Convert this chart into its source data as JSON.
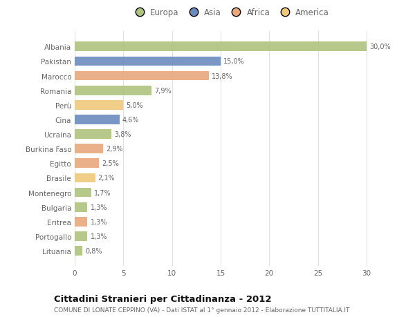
{
  "countries": [
    "Albania",
    "Pakistan",
    "Marocco",
    "Romania",
    "Perù",
    "Cina",
    "Ucraina",
    "Burkina Faso",
    "Egitto",
    "Brasile",
    "Montenegro",
    "Bulgaria",
    "Eritrea",
    "Portogallo",
    "Lituania"
  ],
  "values": [
    30.0,
    15.0,
    13.8,
    7.9,
    5.0,
    4.6,
    3.8,
    2.9,
    2.5,
    2.1,
    1.7,
    1.3,
    1.3,
    1.3,
    0.8
  ],
  "labels": [
    "30,0%",
    "15,0%",
    "13,8%",
    "7,9%",
    "5,0%",
    "4,6%",
    "3,8%",
    "2,9%",
    "2,5%",
    "2,1%",
    "1,7%",
    "1,3%",
    "1,3%",
    "1,3%",
    "0,8%"
  ],
  "colors": [
    "#aec47e",
    "#6b8bbf",
    "#e8a87c",
    "#aec47e",
    "#f0c97a",
    "#6b8bbf",
    "#aec47e",
    "#e8a87c",
    "#e8a87c",
    "#f0c97a",
    "#aec47e",
    "#aec47e",
    "#e8a87c",
    "#aec47e",
    "#aec47e"
  ],
  "legend_labels": [
    "Europa",
    "Asia",
    "Africa",
    "America"
  ],
  "legend_colors": [
    "#aec47e",
    "#6b8bbf",
    "#e8a87c",
    "#f0c97a"
  ],
  "title": "Cittadini Stranieri per Cittadinanza - 2012",
  "subtitle": "COMUNE DI LONATE CEPPINO (VA) - Dati ISTAT al 1° gennaio 2012 - Elaborazione TUTTITALIA.IT",
  "xlim": [
    0,
    32
  ],
  "xticks": [
    0,
    5,
    10,
    15,
    20,
    25,
    30
  ],
  "background_color": "#ffffff",
  "grid_color": "#e0e0e0",
  "bar_height": 0.65,
  "text_color": "#666666",
  "title_color": "#111111",
  "subtitle_color": "#666666"
}
